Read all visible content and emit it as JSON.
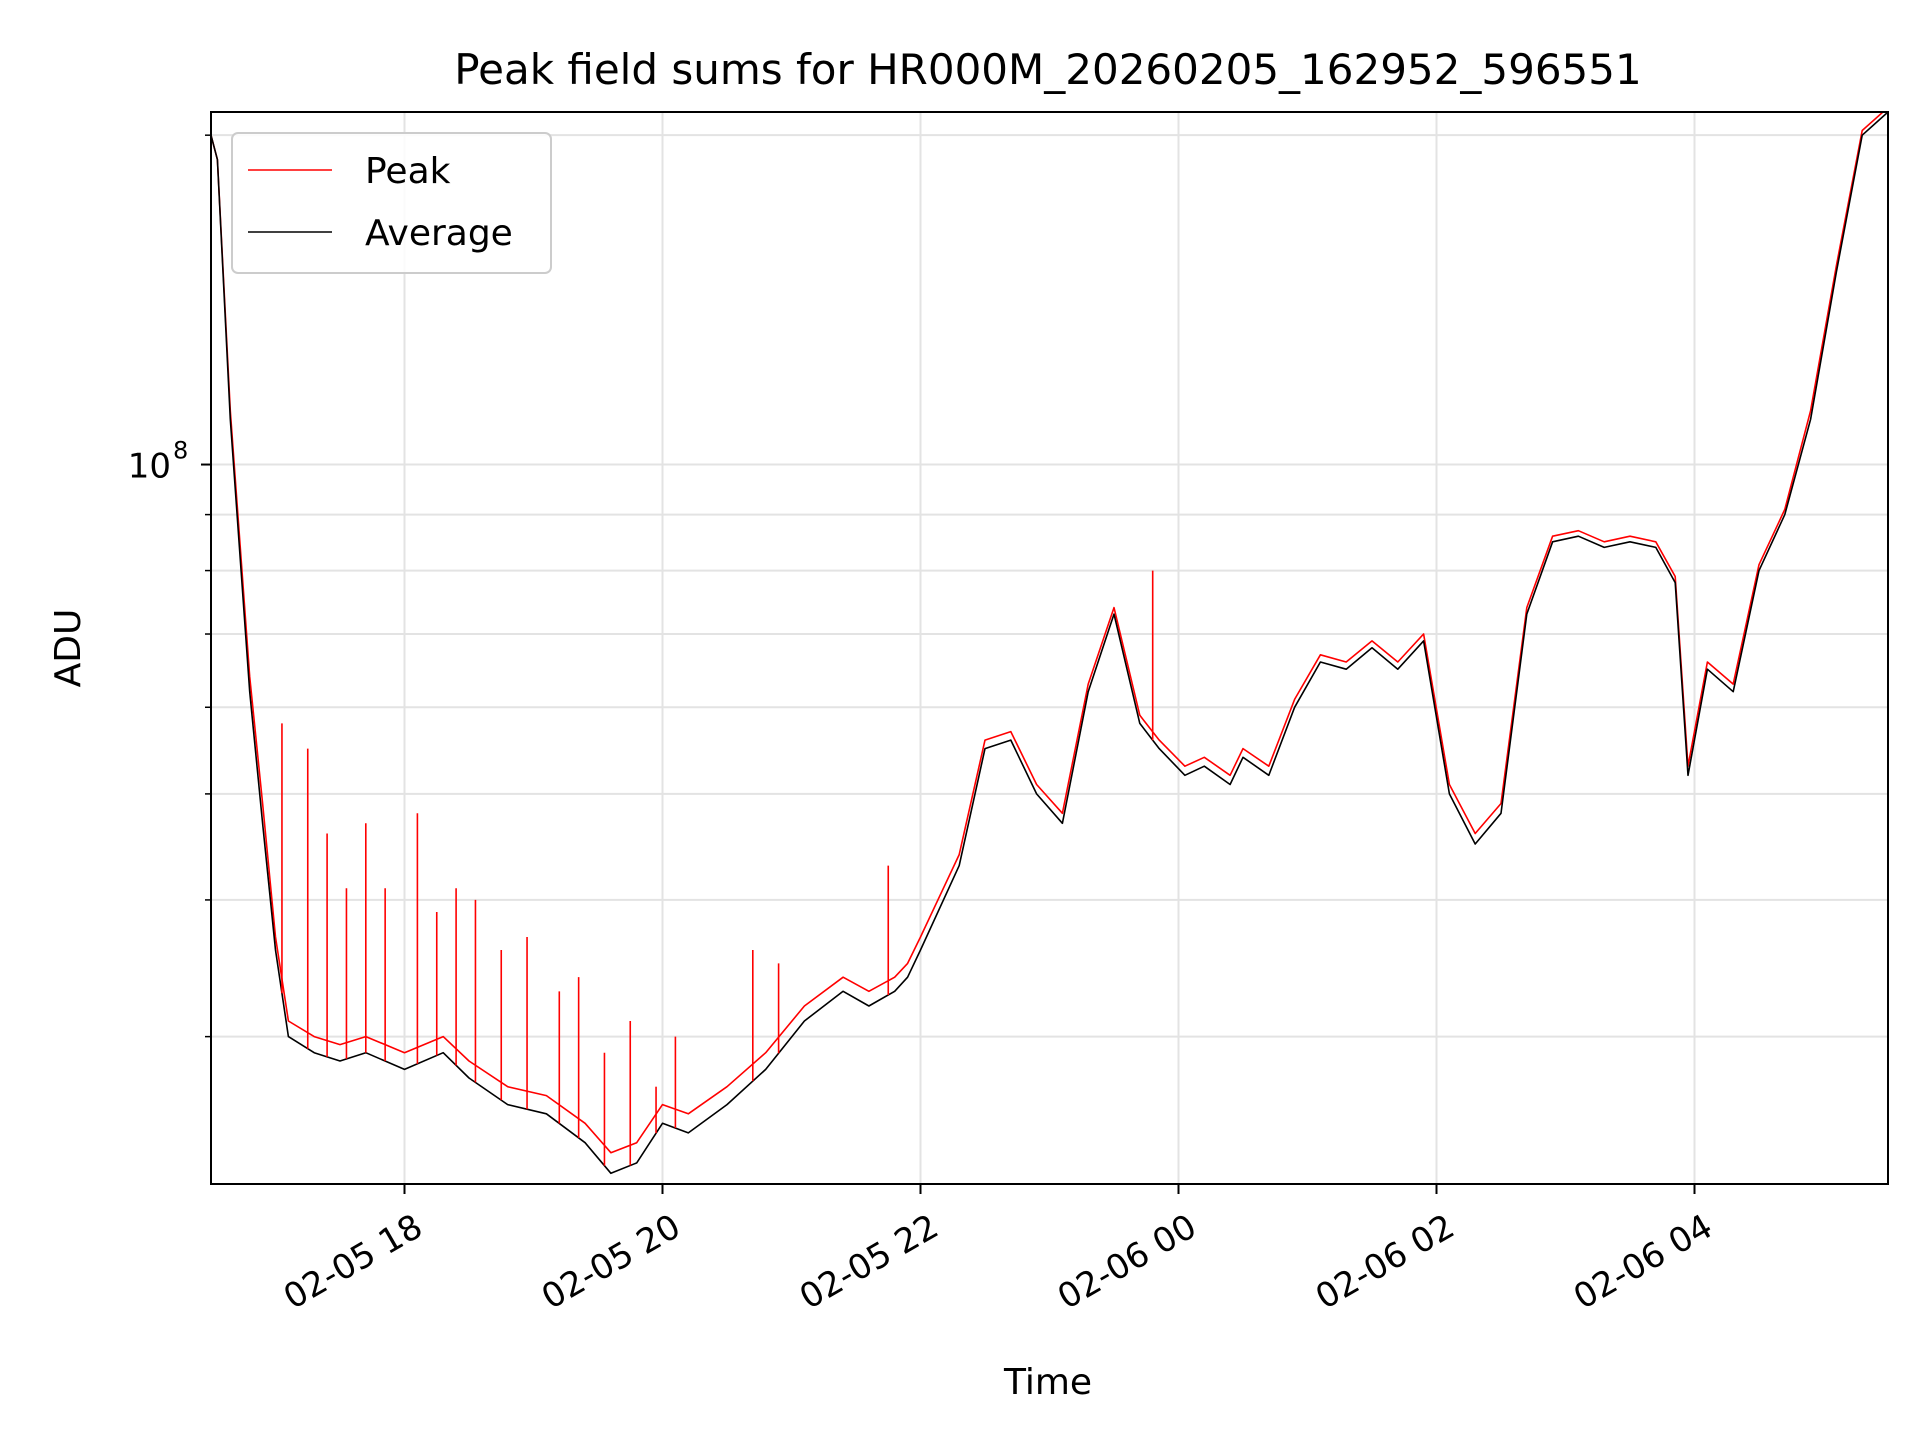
{
  "chart_data": {
    "type": "line",
    "title": "Peak field sums for HR000M_20260205_162952_596551",
    "xlabel": "Time",
    "ylabel": "ADU",
    "yscale": "log",
    "ylim": [
      22000000,
      210000000
    ],
    "x_unit": "hours since 2026-02-05 16:30",
    "xlim": [
      0,
      13.0
    ],
    "grid": true,
    "legend_position": "upper-left",
    "x_ticks": [
      {
        "value": 1.5,
        "label": "02-05 18"
      },
      {
        "value": 3.5,
        "label": "02-05 20"
      },
      {
        "value": 5.5,
        "label": "02-05 22"
      },
      {
        "value": 7.5,
        "label": "02-06 00"
      },
      {
        "value": 9.5,
        "label": "02-06 02"
      },
      {
        "value": 11.5,
        "label": "02-06 04"
      }
    ],
    "y_major_ticks": [
      {
        "value": 100000000,
        "base": "10",
        "exp": "8"
      }
    ],
    "y_minor_ticks": [
      30000000,
      40000000,
      50000000,
      60000000,
      70000000,
      80000000,
      90000000,
      200000000
    ],
    "series": [
      {
        "name": "Average",
        "color": "#000000",
        "x": [
          0,
          0.05,
          0.15,
          0.3,
          0.4,
          0.5,
          0.6,
          0.8,
          1.0,
          1.2,
          1.5,
          1.8,
          2.0,
          2.3,
          2.6,
          2.9,
          3.1,
          3.3,
          3.5,
          3.7,
          4.0,
          4.3,
          4.6,
          4.9,
          5.1,
          5.3,
          5.4,
          5.5,
          5.8,
          6.0,
          6.2,
          6.4,
          6.6,
          6.8,
          7.0,
          7.2,
          7.35,
          7.55,
          7.7,
          7.9,
          8.0,
          8.2,
          8.4,
          8.6,
          8.8,
          9.0,
          9.2,
          9.4,
          9.6,
          9.8,
          10.0,
          10.2,
          10.4,
          10.6,
          10.8,
          11.0,
          11.2,
          11.35,
          11.45,
          11.6,
          11.8,
          12.0,
          12.2,
          12.4,
          12.6,
          12.8,
          13.0
        ],
        "y": [
          200000000,
          190000000,
          110000000,
          62000000,
          47000000,
          36000000,
          30000000,
          29000000,
          28500000,
          29000000,
          28000000,
          29000000,
          27500000,
          26000000,
          25500000,
          24000000,
          22500000,
          23000000,
          25000000,
          24500000,
          26000000,
          28000000,
          31000000,
          33000000,
          32000000,
          33000000,
          34000000,
          36000000,
          43000000,
          55000000,
          56000000,
          50000000,
          47000000,
          62000000,
          73000000,
          58000000,
          55000000,
          52000000,
          53000000,
          51000000,
          54000000,
          52000000,
          60000000,
          66000000,
          65000000,
          68000000,
          65000000,
          69000000,
          50000000,
          45000000,
          48000000,
          73000000,
          85000000,
          86000000,
          84000000,
          85000000,
          84000000,
          78000000,
          52000000,
          65000000,
          62000000,
          80000000,
          90000000,
          110000000,
          150000000,
          200000000,
          210000000
        ]
      },
      {
        "name": "Peak",
        "color": "#ff0000",
        "x": [
          0,
          0.05,
          0.15,
          0.3,
          0.4,
          0.5,
          0.6,
          0.8,
          1.0,
          1.2,
          1.5,
          1.8,
          2.0,
          2.3,
          2.6,
          2.9,
          3.1,
          3.3,
          3.5,
          3.7,
          4.0,
          4.3,
          4.6,
          4.9,
          5.1,
          5.3,
          5.4,
          5.5,
          5.8,
          6.0,
          6.2,
          6.4,
          6.6,
          6.8,
          7.0,
          7.2,
          7.35,
          7.55,
          7.7,
          7.9,
          8.0,
          8.2,
          8.4,
          8.6,
          8.8,
          9.0,
          9.2,
          9.4,
          9.6,
          9.8,
          10.0,
          10.2,
          10.4,
          10.6,
          10.8,
          11.0,
          11.2,
          11.35,
          11.45,
          11.6,
          11.8,
          12.0,
          12.2,
          12.4,
          12.6,
          12.8,
          13.0
        ],
        "y": [
          200000000,
          190000000,
          112000000,
          64000000,
          49000000,
          37000000,
          31000000,
          30000000,
          29500000,
          30000000,
          29000000,
          30000000,
          28500000,
          27000000,
          26500000,
          25000000,
          23500000,
          24000000,
          26000000,
          25500000,
          27000000,
          29000000,
          32000000,
          34000000,
          33000000,
          34000000,
          35000000,
          37000000,
          44000000,
          56000000,
          57000000,
          51000000,
          48000000,
          63000000,
          74000000,
          59000000,
          56000000,
          53000000,
          54000000,
          52000000,
          55000000,
          53000000,
          61000000,
          67000000,
          66000000,
          69000000,
          66000000,
          70000000,
          51000000,
          46000000,
          49000000,
          74000000,
          86000000,
          87000000,
          85000000,
          86000000,
          85000000,
          79000000,
          53000000,
          66000000,
          63000000,
          81000000,
          91000000,
          112000000,
          152000000,
          202000000,
          212000000
        ]
      }
    ],
    "spikes": [
      {
        "x": 0.55,
        "y": 58000000
      },
      {
        "x": 0.75,
        "y": 55000000
      },
      {
        "x": 0.9,
        "y": 46000000
      },
      {
        "x": 1.05,
        "y": 41000000
      },
      {
        "x": 1.2,
        "y": 47000000
      },
      {
        "x": 1.35,
        "y": 41000000
      },
      {
        "x": 1.6,
        "y": 48000000
      },
      {
        "x": 1.75,
        "y": 39000000
      },
      {
        "x": 1.9,
        "y": 41000000
      },
      {
        "x": 2.05,
        "y": 40000000
      },
      {
        "x": 2.25,
        "y": 36000000
      },
      {
        "x": 2.45,
        "y": 37000000
      },
      {
        "x": 2.7,
        "y": 33000000
      },
      {
        "x": 2.85,
        "y": 34000000
      },
      {
        "x": 3.05,
        "y": 29000000
      },
      {
        "x": 3.25,
        "y": 31000000
      },
      {
        "x": 3.45,
        "y": 27000000
      },
      {
        "x": 3.6,
        "y": 30000000
      },
      {
        "x": 4.2,
        "y": 36000000
      },
      {
        "x": 4.4,
        "y": 35000000
      },
      {
        "x": 5.25,
        "y": 43000000
      },
      {
        "x": 7.3,
        "y": 80000000
      }
    ],
    "legend": [
      {
        "name": "Peak",
        "color": "#ff0000"
      },
      {
        "name": "Average",
        "color": "#000000"
      }
    ]
  }
}
